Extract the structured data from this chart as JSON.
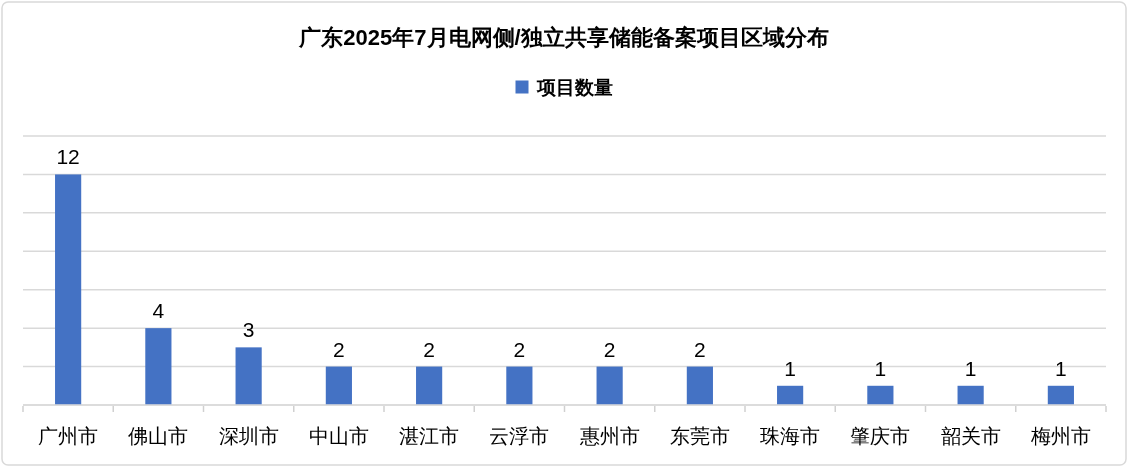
{
  "chart_data": {
    "type": "bar",
    "title": "广东2025年7月电网侧/独立共享储能备案项目区域分布",
    "categories": [
      "广州市",
      "佛山市",
      "深圳市",
      "中山市",
      "湛江市",
      "云浮市",
      "惠州市",
      "东莞市",
      "珠海市",
      "肇庆市",
      "韶关市",
      "梅州市"
    ],
    "series": [
      {
        "name": "项目数量",
        "color": "#4472c4",
        "values": [
          12,
          4,
          3,
          2,
          2,
          2,
          2,
          2,
          1,
          1,
          1,
          1
        ]
      }
    ],
    "ylim": [
      0,
      14
    ],
    "yticks": [
      {
        "value": 0,
        "label": null
      },
      {
        "value": 2,
        "label": null
      },
      {
        "value": 4,
        "label": null
      },
      {
        "value": 6,
        "label": null
      },
      {
        "value": 8,
        "label": null
      },
      {
        "value": 10,
        "label": null
      },
      {
        "value": 12,
        "label": null
      },
      {
        "value": 14,
        "label": null
      }
    ],
    "tick_labels": "x",
    "grid": "y",
    "legend": "top",
    "data_labels": true
  }
}
